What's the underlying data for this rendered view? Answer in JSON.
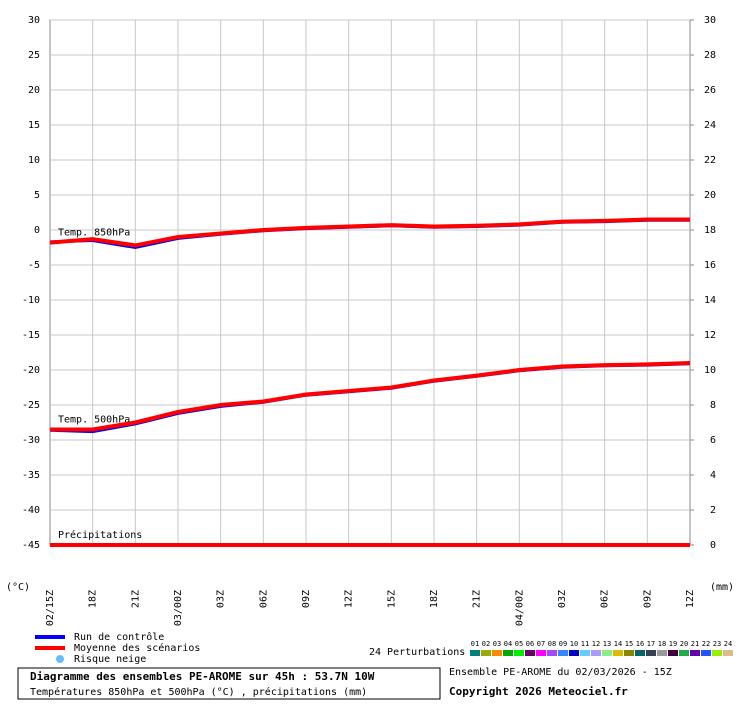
{
  "chart_data": {
    "type": "line",
    "categories": [
      "02/15Z",
      "18Z",
      "21Z",
      "03/00Z",
      "03Z",
      "06Z",
      "09Z",
      "12Z",
      "15Z",
      "18Z",
      "21Z",
      "04/00Z",
      "03Z",
      "06Z",
      "09Z",
      "12Z"
    ],
    "ylabel": "(°C)",
    "y2label": "(mm)",
    "ylim": [
      -45,
      30
    ],
    "yticks": [
      30,
      25,
      20,
      15,
      10,
      5,
      0,
      -5,
      -10,
      -15,
      -20,
      -25,
      -30,
      -35,
      -40,
      -45
    ],
    "y2lim": [
      0,
      30
    ],
    "y2ticks": [
      30,
      28,
      26,
      24,
      22,
      20,
      18,
      16,
      14,
      12,
      10,
      8,
      6,
      4,
      2,
      0
    ],
    "grid": true,
    "series": [
      {
        "name": "Temp. 850hPa",
        "axis": "y",
        "control": [
          -1.7,
          -1.5,
          -2.5,
          -1.2,
          -0.6,
          -0.1,
          0.2,
          0.4,
          0.6,
          0.4,
          0.5,
          0.7,
          1.1,
          1.2,
          1.4,
          1.4
        ],
        "mean": [
          -1.8,
          -1.3,
          -2.2,
          -1.0,
          -0.5,
          0.0,
          0.3,
          0.5,
          0.7,
          0.5,
          0.6,
          0.8,
          1.2,
          1.3,
          1.5,
          1.5
        ]
      },
      {
        "name": "Temp. 500hPa",
        "axis": "y",
        "control": [
          -28.6,
          -28.8,
          -27.7,
          -26.2,
          -25.2,
          -24.6,
          -23.6,
          -23.1,
          -22.6,
          -21.6,
          -20.9,
          -20.1,
          -19.6,
          -19.4,
          -19.3,
          -19.1
        ],
        "mean": [
          -28.5,
          -28.5,
          -27.5,
          -26.0,
          -25.0,
          -24.5,
          -23.5,
          -23.0,
          -22.5,
          -21.5,
          -20.8,
          -20.0,
          -19.5,
          -19.3,
          -19.2,
          -19.0
        ]
      },
      {
        "name": "Précipitations",
        "axis": "y2",
        "control": [
          0,
          0,
          0,
          0,
          0,
          0,
          0,
          0,
          0,
          0,
          0,
          0,
          0,
          0,
          0,
          0
        ],
        "mean": [
          0,
          0,
          0,
          0,
          0,
          0,
          0,
          0,
          0,
          0,
          0,
          0,
          0,
          0,
          0,
          0
        ]
      }
    ],
    "legend": [
      {
        "name": "Run de contrôle",
        "color": "#0000ff"
      },
      {
        "name": "Moyenne des scénarios",
        "color": "#ff0000"
      },
      {
        "name": "Risque neige",
        "color": "#66bbff"
      }
    ],
    "perturbations": {
      "label": "24 Perturbations",
      "items": [
        {
          "label": "01",
          "color": "#008080"
        },
        {
          "label": "02",
          "color": "#99aa00"
        },
        {
          "label": "03",
          "color": "#ff8800"
        },
        {
          "label": "04",
          "color": "#00aa00"
        },
        {
          "label": "05",
          "color": "#00ee00"
        },
        {
          "label": "06",
          "color": "#660066"
        },
        {
          "label": "07",
          "color": "#ff00ff"
        },
        {
          "label": "08",
          "color": "#aa44ff"
        },
        {
          "label": "09",
          "color": "#3388ff"
        },
        {
          "label": "10",
          "color": "#0000cc"
        },
        {
          "label": "11",
          "color": "#66ccff"
        },
        {
          "label": "12",
          "color": "#aa99ff"
        },
        {
          "label": "13",
          "color": "#88ee88"
        },
        {
          "label": "14",
          "color": "#ddbb00"
        },
        {
          "label": "15",
          "color": "#888800"
        },
        {
          "label": "16",
          "color": "#006666"
        },
        {
          "label": "17",
          "color": "#334455"
        },
        {
          "label": "18",
          "color": "#999999"
        },
        {
          "label": "19",
          "color": "#440044"
        },
        {
          "label": "20",
          "color": "#22aa44"
        },
        {
          "label": "21",
          "color": "#6600aa"
        },
        {
          "label": "22",
          "color": "#2255ff"
        },
        {
          "label": "23",
          "color": "#99ee00"
        },
        {
          "label": "24",
          "color": "#ddbb88"
        }
      ]
    }
  },
  "footer": {
    "title": "Diagramme des ensembles PE-AROME sur 45h : 53.7N 10W",
    "subtitle": "Températures 850hPa et 500hPa (°C) , précipitations (mm)",
    "run": "Ensemble PE-AROME du 02/03/2026 - 15Z",
    "copyright": "Copyright 2026 Meteociel.fr"
  }
}
